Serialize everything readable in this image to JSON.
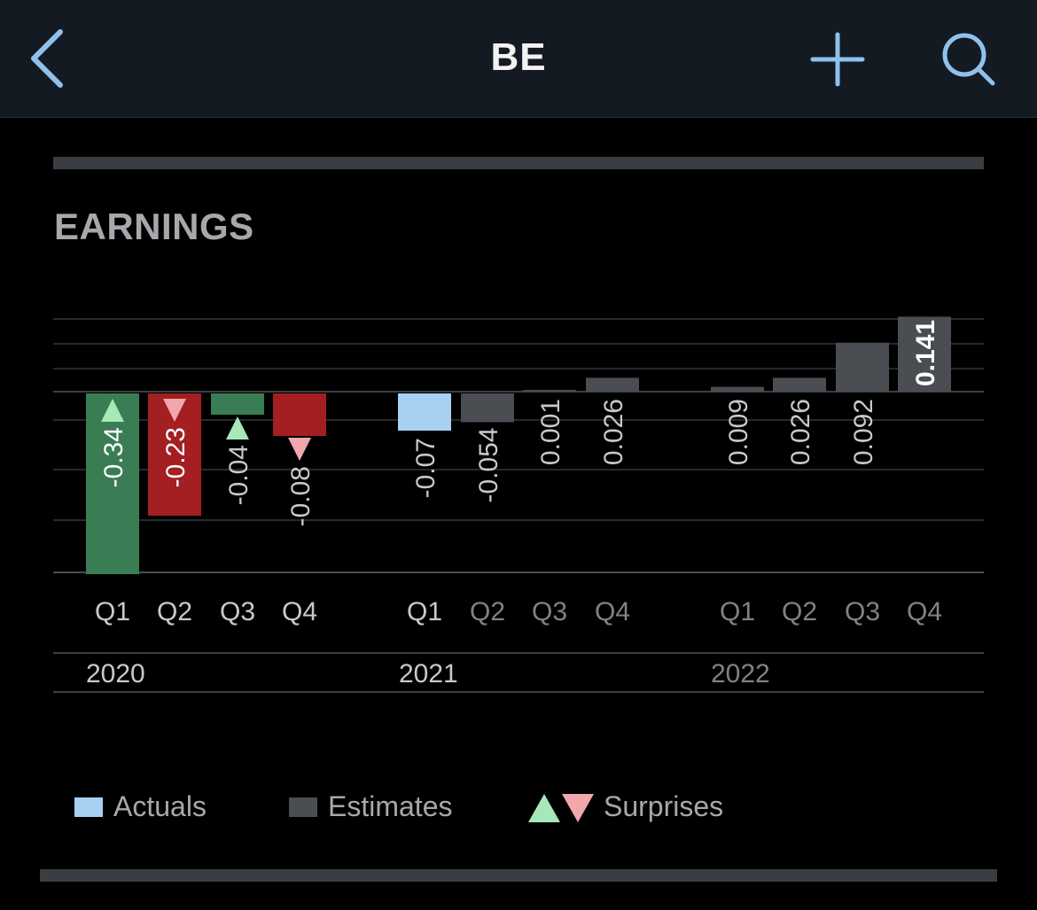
{
  "header": {
    "title": "BE"
  },
  "section": {
    "title": "EARNINGS"
  },
  "colors": {
    "actual": "#a7d0f2",
    "estimate": "#4a4d52",
    "beat": "#3a7d55",
    "miss": "#a31f22",
    "surprise_up": "#a8e8b6",
    "surprise_down": "#f0a8ac",
    "accent": "#8ec2ec"
  },
  "legend": {
    "actuals": "Actuals",
    "estimates": "Estimates",
    "surprises": "Surprises"
  },
  "chart_data": {
    "type": "bar",
    "years": [
      "2020",
      "2021",
      "2022"
    ],
    "categories": [
      "Q1 2020",
      "Q2 2020",
      "Q3 2020",
      "Q4 2020",
      "Q1 2021",
      "Q2 2021",
      "Q3 2021",
      "Q4 2021",
      "Q1 2022",
      "Q2 2022",
      "Q3 2022",
      "Q4 2022"
    ],
    "quarter_labels": [
      "Q1",
      "Q2",
      "Q3",
      "Q4",
      "Q1",
      "Q2",
      "Q3",
      "Q4",
      "Q1",
      "Q2",
      "Q3",
      "Q4"
    ],
    "series": [
      {
        "name": "Actuals",
        "values": [
          -0.34,
          -0.23,
          -0.04,
          -0.08,
          -0.07,
          null,
          null,
          null,
          null,
          null,
          null,
          null
        ]
      },
      {
        "name": "Estimates",
        "values": [
          null,
          null,
          null,
          null,
          null,
          -0.054,
          0.001,
          0.026,
          0.009,
          0.026,
          0.092,
          0.141
        ]
      }
    ],
    "bar_labels": [
      "-0.34",
      "-0.23",
      "-0.04",
      "-0.08",
      "-0.07",
      "-0.054",
      "0.001",
      "0.026",
      "0.009",
      "0.026",
      "0.092",
      "0.141"
    ],
    "surprises": [
      "up",
      "down",
      "up",
      "down",
      null,
      null,
      null,
      null,
      null,
      null,
      null,
      null
    ],
    "ylim": [
      -0.34,
      0.141
    ],
    "grid": true
  }
}
